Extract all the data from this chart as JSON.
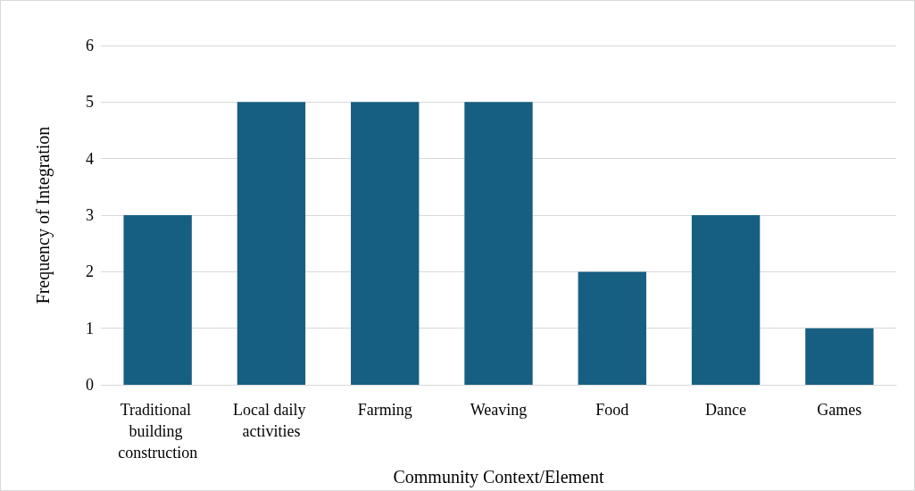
{
  "chart_data": {
    "type": "bar",
    "xlabel": "Community Context/Element",
    "ylabel": "Frequency of Integration",
    "categories": [
      "Traditional building construction",
      "Local daily activities",
      "Farming",
      "Weaving",
      "Food",
      "Dance",
      "Games"
    ],
    "values": [
      3,
      5,
      5,
      5,
      2,
      3,
      1
    ],
    "color": "#175f82",
    "ylim": [
      0,
      6
    ],
    "yticks": [
      0,
      1,
      2,
      3,
      4,
      5,
      6
    ],
    "grid": "y"
  }
}
